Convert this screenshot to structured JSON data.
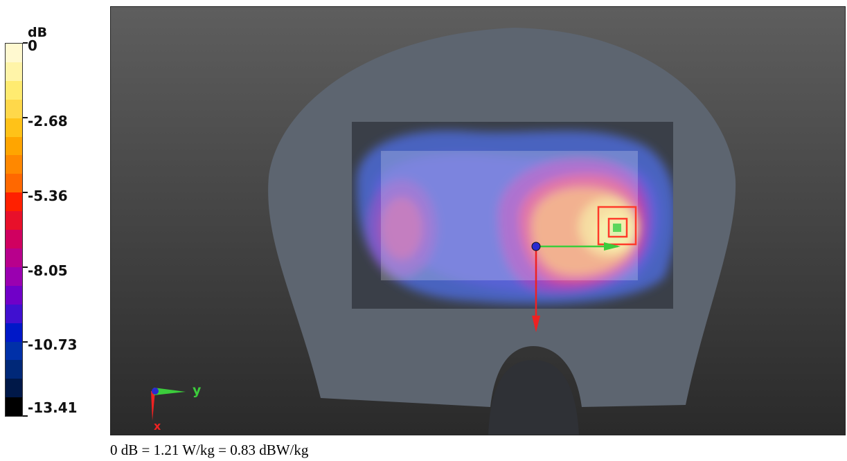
{
  "colorbar": {
    "unit": "dB",
    "ticks": [
      "0",
      "-2.68",
      "-5.36",
      "-8.05",
      "-10.73",
      "-13.41"
    ],
    "levels": [
      "#fff9d0",
      "#fff4a8",
      "#ffeb70",
      "#ffd84a",
      "#ffc218",
      "#ffa500",
      "#ff8800",
      "#ff6800",
      "#ff2000",
      "#e8102a",
      "#d00060",
      "#b8008c",
      "#9a00b0",
      "#7000c8",
      "#4010d0",
      "#0018c8",
      "#0030a8",
      "#002878",
      "#001848",
      "#000000"
    ]
  },
  "viewport": {
    "axes_labels": {
      "y": "y",
      "x": "x"
    },
    "colors": {
      "phantom": "#5d6570",
      "scan_area": "#3a3f48",
      "zoom_box": "#ff3a2a"
    }
  },
  "caption": "0 dB = 1.21 W/kg = 0.83 dBW/kg"
}
